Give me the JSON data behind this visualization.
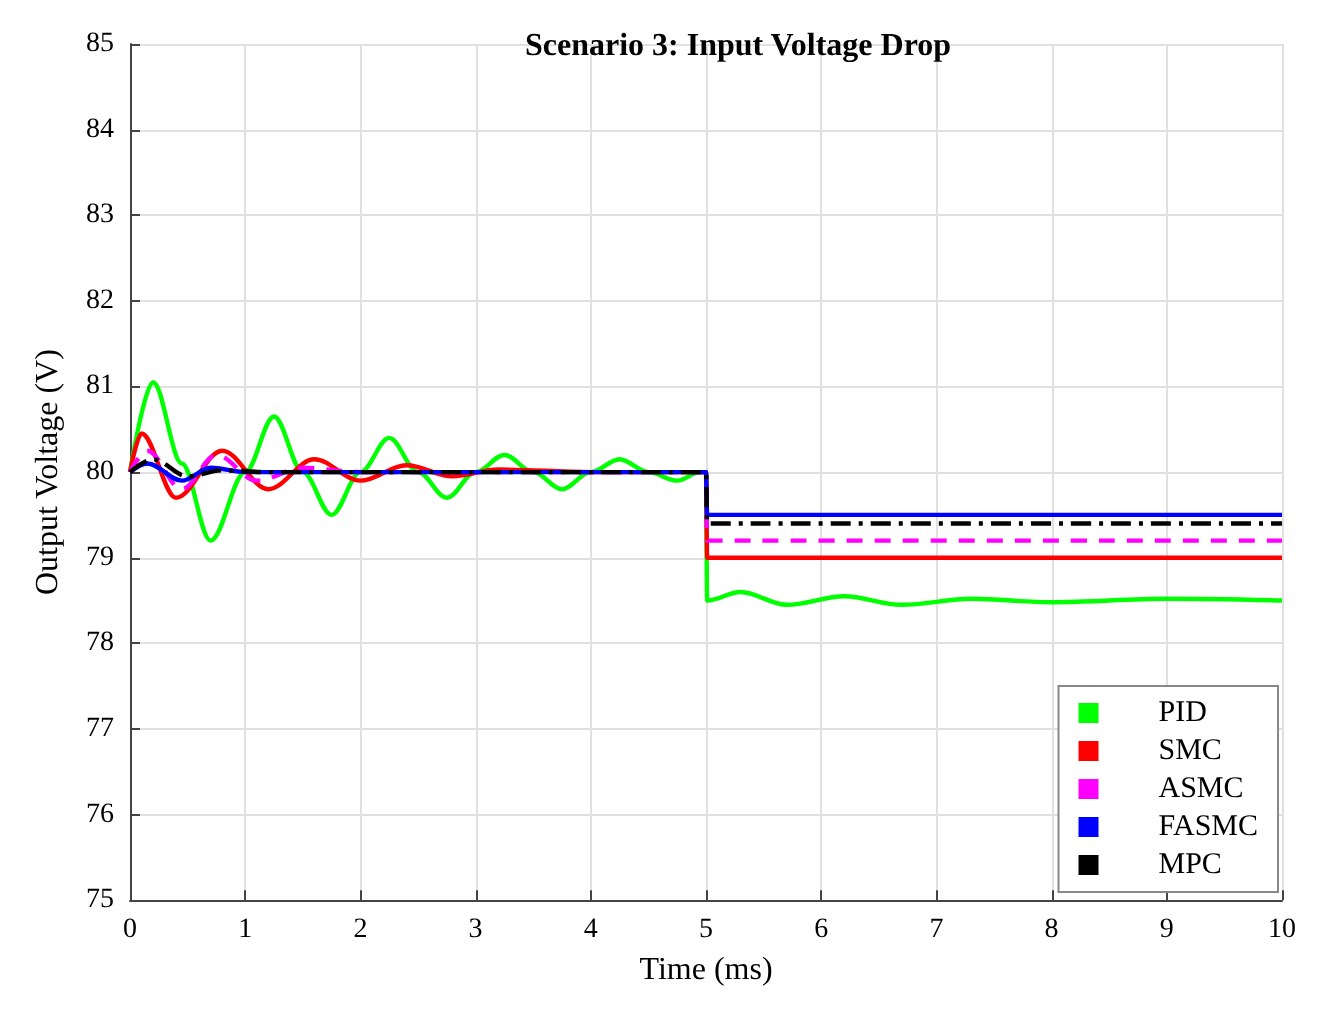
{
  "chart_data": {
    "type": "line",
    "title": "Scenario 3: Input Voltage Drop",
    "xlabel": "Time (ms)",
    "ylabel": "Output Voltage (V)",
    "xlim": [
      0,
      10
    ],
    "xticks": [
      0,
      1,
      2,
      3,
      4,
      5,
      6,
      7,
      8,
      9,
      10
    ],
    "ylim": [
      75,
      85
    ],
    "yticks": [
      75,
      76,
      77,
      78,
      79,
      80,
      81,
      82,
      83,
      84,
      85
    ],
    "grid": true,
    "legend": "bottom right",
    "marker": "none",
    "series": [
      {
        "name": "PID",
        "color": "#00ff00",
        "line_style": "solid",
        "x": [
          0,
          0.2,
          0.45,
          0.7,
          1.0,
          1.25,
          1.5,
          1.75,
          2.0,
          2.25,
          2.5,
          2.75,
          3.0,
          3.25,
          3.5,
          3.75,
          4.0,
          4.25,
          4.5,
          4.75,
          4.95,
          5.0,
          5.01,
          5.3,
          5.7,
          6.2,
          6.7,
          7.3,
          8,
          9,
          10
        ],
        "values": [
          80.0,
          81.05,
          80.1,
          79.2,
          80.0,
          80.65,
          80.0,
          79.5,
          80.0,
          80.4,
          80.0,
          79.7,
          80.0,
          80.2,
          80.0,
          79.8,
          80.0,
          80.15,
          80.0,
          79.9,
          80.0,
          80.0,
          78.5,
          78.6,
          78.45,
          78.55,
          78.45,
          78.52,
          78.48,
          78.52,
          78.5
        ]
      },
      {
        "name": "SMC",
        "color": "#ff0000",
        "line_style": "solid",
        "x": [
          0,
          0.1,
          0.4,
          0.8,
          1.2,
          1.6,
          2.0,
          2.4,
          2.8,
          3.2,
          4,
          5,
          5.01,
          10
        ],
        "values": [
          80.0,
          80.45,
          79.7,
          80.25,
          79.8,
          80.15,
          79.9,
          80.08,
          79.95,
          80.03,
          80.0,
          80.0,
          79.0,
          79.0
        ]
      },
      {
        "name": "ASMC",
        "color": "#ff00ff",
        "line_style": "dashed",
        "x": [
          0,
          0.15,
          0.45,
          0.75,
          1.1,
          1.5,
          2,
          5,
          5.01,
          10
        ],
        "values": [
          80.0,
          80.25,
          79.8,
          80.2,
          79.9,
          80.05,
          80.0,
          80.0,
          79.2,
          79.2
        ]
      },
      {
        "name": "FASMC",
        "color": "#0000ff",
        "line_style": "solid",
        "x": [
          0,
          0.15,
          0.45,
          0.7,
          1,
          5,
          5.01,
          10
        ],
        "values": [
          80.0,
          80.1,
          79.9,
          80.05,
          80.0,
          80.0,
          79.5,
          79.5
        ]
      },
      {
        "name": "MPC",
        "color": "#000000",
        "line_style": "dashdot",
        "x": [
          0,
          0.2,
          0.5,
          0.8,
          1.2,
          5,
          5.01,
          10
        ],
        "values": [
          80.0,
          80.15,
          79.95,
          80.02,
          80.0,
          80.0,
          79.4,
          79.4
        ]
      }
    ]
  }
}
